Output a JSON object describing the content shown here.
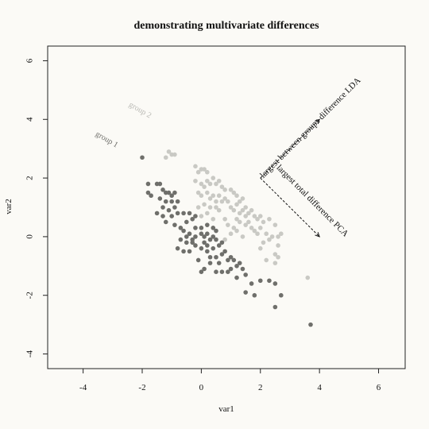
{
  "chart_data": {
    "type": "scatter",
    "title": "demonstrating multivariate differences",
    "xlabel": "var1",
    "ylabel": "var2",
    "xlim": [
      -5.2,
      6.9
    ],
    "ylim": [
      -4.5,
      6.5
    ],
    "xticks": [
      "-4",
      "-2",
      "0",
      "2",
      "4",
      "6"
    ],
    "yticks": [
      "-4",
      "-2",
      "0",
      "2",
      "4",
      "6"
    ],
    "xtick_values": [
      -4,
      -2,
      0,
      2,
      4,
      6
    ],
    "ytick_values": [
      -4,
      -2,
      0,
      2,
      4,
      6
    ],
    "grid": false,
    "colors": {
      "group1": "#6f6f6b",
      "group2": "#c9c9c4",
      "text": "#111111"
    },
    "annotations": {
      "group1_label": "group 1",
      "group2_label": "group 2",
      "lda_label": "largest between groups difference LDA",
      "pca_label": "largest total difference PCA"
    },
    "arrows": [
      {
        "name": "lda",
        "from": [
          2,
          2
        ],
        "to": [
          4,
          4
        ]
      },
      {
        "name": "pca",
        "from": [
          2,
          2
        ],
        "to": [
          4,
          0
        ]
      }
    ],
    "series": [
      {
        "name": "group 1",
        "points": [
          [
            -2.0,
            2.7
          ],
          [
            -1.8,
            1.8
          ],
          [
            -1.8,
            1.5
          ],
          [
            -1.7,
            1.4
          ],
          [
            -1.5,
            1.8
          ],
          [
            -1.4,
            1.8
          ],
          [
            -1.3,
            1.6
          ],
          [
            -1.4,
            1.3
          ],
          [
            -1.2,
            1.5
          ],
          [
            -1.1,
            1.5
          ],
          [
            -1.0,
            1.4
          ],
          [
            -0.9,
            1.5
          ],
          [
            -1.2,
            1.2
          ],
          [
            -1.0,
            1.2
          ],
          [
            -0.8,
            1.2
          ],
          [
            -1.3,
            1.0
          ],
          [
            -1.1,
            0.9
          ],
          [
            -1.5,
            0.8
          ],
          [
            -1.3,
            0.7
          ],
          [
            -1.0,
            0.7
          ],
          [
            -0.8,
            0.8
          ],
          [
            -0.6,
            0.8
          ],
          [
            -0.4,
            0.8
          ],
          [
            -1.2,
            0.5
          ],
          [
            -0.9,
            0.4
          ],
          [
            -0.7,
            0.3
          ],
          [
            -0.5,
            0.5
          ],
          [
            -0.3,
            0.6
          ],
          [
            -0.6,
            0.2
          ],
          [
            -0.4,
            0.1
          ],
          [
            -0.2,
            0.3
          ],
          [
            -0.7,
            -0.1
          ],
          [
            -0.5,
            -0.2
          ],
          [
            -0.3,
            -0.2
          ],
          [
            -0.8,
            -0.4
          ],
          [
            -0.6,
            -0.5
          ],
          [
            -0.4,
            -0.5
          ],
          [
            -0.2,
            -0.3
          ],
          [
            0.0,
            0.1
          ],
          [
            0.1,
            0.0
          ],
          [
            0.2,
            0.1
          ],
          [
            0.1,
            -0.2
          ],
          [
            0.3,
            -0.1
          ],
          [
            0.5,
            -0.1
          ],
          [
            0.0,
            -0.4
          ],
          [
            0.2,
            -0.5
          ],
          [
            0.4,
            -0.4
          ],
          [
            0.6,
            -0.3
          ],
          [
            0.3,
            -0.7
          ],
          [
            0.5,
            -0.7
          ],
          [
            0.7,
            -0.6
          ],
          [
            0.8,
            -0.5
          ],
          [
            0.9,
            -0.8
          ],
          [
            1.0,
            -0.7
          ],
          [
            1.1,
            -0.8
          ],
          [
            1.2,
            -1.0
          ],
          [
            1.3,
            -0.9
          ],
          [
            1.4,
            -1.1
          ],
          [
            1.0,
            -1.1
          ],
          [
            0.7,
            -1.2
          ],
          [
            0.5,
            -1.2
          ],
          [
            0.1,
            -1.1
          ],
          [
            0.0,
            -1.2
          ],
          [
            0.3,
            -0.9
          ],
          [
            -0.1,
            -0.8
          ],
          [
            0.0,
            0.3
          ],
          [
            0.2,
            0.4
          ],
          [
            0.4,
            0.3
          ],
          [
            0.5,
            0.2
          ],
          [
            -0.2,
            0.0
          ],
          [
            0.2,
            -0.3
          ],
          [
            0.6,
            -0.9
          ],
          [
            0.9,
            -1.2
          ],
          [
            1.2,
            -1.4
          ],
          [
            1.5,
            -1.3
          ],
          [
            1.7,
            -1.6
          ],
          [
            2.0,
            -1.5
          ],
          [
            2.3,
            -1.5
          ],
          [
            2.5,
            -1.6
          ],
          [
            2.7,
            -2.0
          ],
          [
            2.5,
            -2.4
          ],
          [
            1.5,
            -1.9
          ],
          [
            1.8,
            -2.0
          ],
          [
            3.7,
            -3.0
          ],
          [
            -0.5,
            0.0
          ],
          [
            -0.3,
            -0.1
          ],
          [
            0.4,
            0.0
          ],
          [
            0.7,
            -0.2
          ],
          [
            -0.9,
            1.0
          ],
          [
            -0.2,
            0.7
          ]
        ]
      },
      {
        "name": "group 2",
        "points": [
          [
            -1.1,
            2.9
          ],
          [
            -1.0,
            2.8
          ],
          [
            -0.9,
            2.8
          ],
          [
            -1.2,
            2.7
          ],
          [
            -0.2,
            2.4
          ],
          [
            0.0,
            2.3
          ],
          [
            0.1,
            2.3
          ],
          [
            -0.1,
            2.2
          ],
          [
            0.2,
            2.2
          ],
          [
            -0.2,
            1.9
          ],
          [
            0.0,
            1.8
          ],
          [
            0.1,
            1.7
          ],
          [
            0.2,
            1.9
          ],
          [
            0.3,
            1.8
          ],
          [
            0.4,
            2.0
          ],
          [
            0.5,
            1.8
          ],
          [
            0.6,
            1.9
          ],
          [
            0.7,
            1.7
          ],
          [
            0.8,
            1.6
          ],
          [
            -0.1,
            1.5
          ],
          [
            0.0,
            1.4
          ],
          [
            0.2,
            1.5
          ],
          [
            0.3,
            1.3
          ],
          [
            0.4,
            1.4
          ],
          [
            0.5,
            1.2
          ],
          [
            0.6,
            1.4
          ],
          [
            0.7,
            1.2
          ],
          [
            0.8,
            1.3
          ],
          [
            0.9,
            1.2
          ],
          [
            1.0,
            1.6
          ],
          [
            1.1,
            1.5
          ],
          [
            1.2,
            1.4
          ],
          [
            1.3,
            1.2
          ],
          [
            1.4,
            1.3
          ],
          [
            1.0,
            1.0
          ],
          [
            1.1,
            0.9
          ],
          [
            1.2,
            1.1
          ],
          [
            1.3,
            0.8
          ],
          [
            1.4,
            0.9
          ],
          [
            1.5,
            1.0
          ],
          [
            1.6,
            0.8
          ],
          [
            1.7,
            0.9
          ],
          [
            1.8,
            0.7
          ],
          [
            1.9,
            0.6
          ],
          [
            2.0,
            0.7
          ],
          [
            1.2,
            0.6
          ],
          [
            1.3,
            0.5
          ],
          [
            1.5,
            0.4
          ],
          [
            1.6,
            0.5
          ],
          [
            1.7,
            0.3
          ],
          [
            1.8,
            0.2
          ],
          [
            1.9,
            0.1
          ],
          [
            2.0,
            0.3
          ],
          [
            2.1,
            0.5
          ],
          [
            2.2,
            0.1
          ],
          [
            2.3,
            -0.1
          ],
          [
            2.4,
            0.0
          ],
          [
            2.5,
            0.4
          ],
          [
            2.6,
            0.0
          ],
          [
            2.7,
            0.1
          ],
          [
            2.6,
            -0.3
          ],
          [
            2.5,
            -0.6
          ],
          [
            2.6,
            -0.7
          ],
          [
            2.5,
            -0.9
          ],
          [
            2.0,
            -0.4
          ],
          [
            1.4,
            0.0
          ],
          [
            1.1,
            0.3
          ],
          [
            0.8,
            0.6
          ],
          [
            0.6,
            0.9
          ],
          [
            0.3,
            1.0
          ],
          [
            0.1,
            1.1
          ],
          [
            -0.1,
            1.0
          ],
          [
            0.0,
            0.7
          ],
          [
            0.2,
            0.8
          ],
          [
            0.4,
            0.6
          ],
          [
            0.9,
            0.4
          ],
          [
            1.0,
            0.1
          ],
          [
            1.2,
            0.2
          ],
          [
            0.8,
            -0.1
          ],
          [
            2.3,
            0.6
          ],
          [
            2.1,
            -0.2
          ],
          [
            1.5,
            0.7
          ],
          [
            0.5,
            1.0
          ],
          [
            3.6,
            -1.4
          ],
          [
            2.2,
            -0.8
          ]
        ]
      }
    ]
  }
}
